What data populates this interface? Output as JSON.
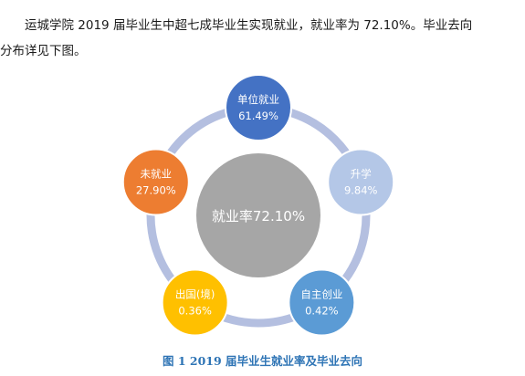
{
  "intro": {
    "line1": "运城学院 2019 届毕业生中超七成毕业生实现就业，就业率为 72.10%。毕业去向",
    "line2": "分布详见下图。"
  },
  "center": {
    "label": "就业率72.10%",
    "color": "#a6a6a6"
  },
  "nodes": [
    {
      "id": "employment",
      "label": "单位就业",
      "value": "61.49%",
      "color": "#4472c4"
    },
    {
      "id": "further-study",
      "label": "升学",
      "value": "9.84%",
      "color": "#b4c7e7"
    },
    {
      "id": "self-employed",
      "label": "自主创业",
      "value": "0.42%",
      "color": "#5b9bd5"
    },
    {
      "id": "abroad",
      "label": "出国(境)",
      "value": "0.36%",
      "color": "#ffc000"
    },
    {
      "id": "unemployed",
      "label": "未就业",
      "value": "27.90%",
      "color": "#ed7d31"
    }
  ],
  "ring_color": "#b4bfe0",
  "caption": "图 1    2019 届毕业生就业率及毕业去向"
}
